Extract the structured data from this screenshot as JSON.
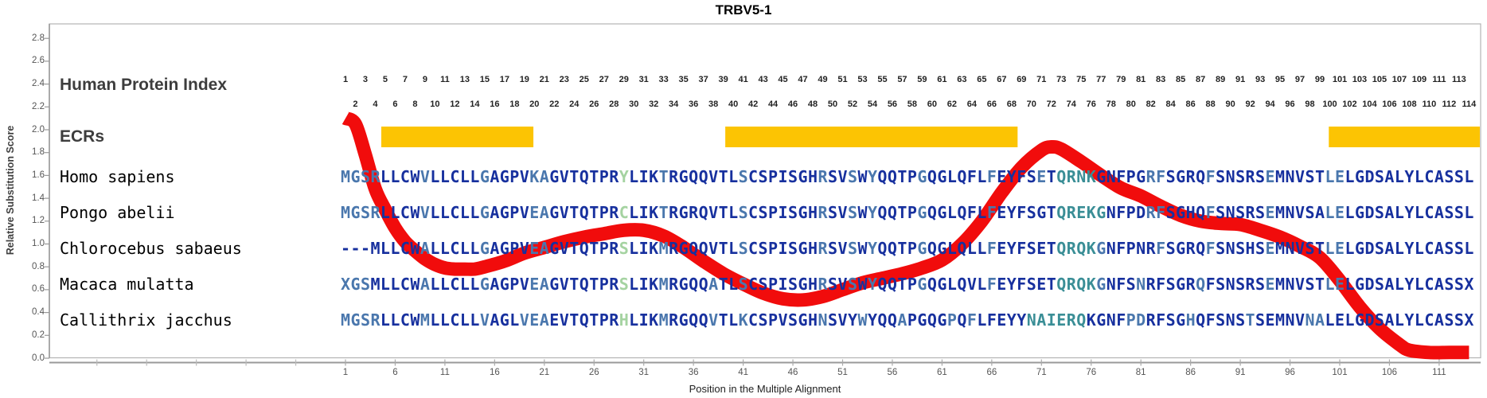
{
  "title": "TRBV5-1",
  "labels": {
    "human_protein_index": "Human Protein Index",
    "ecrs": "ECRs"
  },
  "y_axis": {
    "label": "Relative Substitution Score",
    "ticks": [
      "2.8",
      "2.6",
      "2.4",
      "2.2",
      "2.0",
      "1.8",
      "1.6",
      "1.4",
      "1.2",
      "1.0",
      "0.8",
      "0.6",
      "0.4",
      "0.2",
      "0.0"
    ]
  },
  "x_axis": {
    "label": "Position in the Multiple Alignment",
    "ticks": [
      1,
      6,
      11,
      16,
      21,
      26,
      31,
      36,
      41,
      46,
      51,
      56,
      61,
      66,
      71,
      76,
      81,
      86,
      91,
      96,
      101,
      106,
      111
    ]
  },
  "human_protein_index": {
    "odd_row": [
      1,
      3,
      5,
      7,
      9,
      11,
      13,
      15,
      17,
      19,
      21,
      23,
      25,
      27,
      29,
      31,
      33,
      35,
      37,
      39,
      41,
      43,
      45,
      47,
      49,
      51,
      53,
      55,
      57,
      59,
      61,
      63,
      65,
      67,
      69,
      71,
      73,
      75,
      77,
      79,
      81,
      83,
      85,
      87,
      89,
      91,
      93,
      95,
      97,
      99,
      101,
      103,
      105,
      107,
      109,
      111,
      113
    ],
    "even_row": [
      2,
      4,
      6,
      8,
      10,
      12,
      14,
      16,
      18,
      20,
      22,
      24,
      26,
      28,
      30,
      32,
      34,
      36,
      38,
      40,
      42,
      44,
      46,
      48,
      50,
      52,
      54,
      56,
      58,
      60,
      62,
      64,
      66,
      68,
      70,
      72,
      74,
      76,
      78,
      80,
      82,
      84,
      86,
      88,
      90,
      92,
      94,
      96,
      98,
      100,
      102,
      104,
      106,
      108,
      110,
      112,
      114
    ]
  },
  "ecr_bars": [
    {
      "start_col": 4.6,
      "end_col": 19.9
    },
    {
      "start_col": 39.2,
      "end_col": 68.6
    },
    {
      "start_col": 99.9,
      "end_col": 115.2
    }
  ],
  "alignment": {
    "rows": [
      {
        "species": "Homo sapiens",
        "seq": "MGSRLLCWVLLCLLGAGPVKAGVTQTPRYLIKTRGQQVTLSCSPISGHRSVSWYQQTPGQGLQFLFEYFSETQRNKGNFPGRFSGRQFSNSRSEMNVSTLELGDSALYLCASSL",
        "colors": "111100001000001000011000000030001000000010000000100101000010000001000010222200000110000100000100000110000000000000"
      },
      {
        "species": "Pongo abelii",
        "seq": "MGSRLLCWVLLCLLGAGPVEAGVTQTPRCLIKTRGRQVTLSCSPISGHRSVSWYQQTPGQGLQFLFEYFSGTQREKGNFPDRFSGHQFSNSRSEMNVSALELGDSALYLCASSL",
        "colors": "111100001000001000011000000030001000000010000000100101000010000001000000222220000110000100000100000110000000000000"
      },
      {
        "species": "Chlorocebus sabaeus",
        "seq": "---MLLCWALLCLLGAGPVEAGVTQTPRSLIKMRGQQVTLSCSPISGHRSVSWYQQTPGQGLQLLFEYFSETQRQKGNFPNRFSGRQFSNSHSEMNVSTLELGDSALYLCASSL",
        "colors": "000000001000001000011000000030001000000010000000100101000010000001000000222210000010000100000100000110000000000000"
      },
      {
        "species": "Macaca mulatta",
        "seq": "XGSMLLCWALLCLLGAGPVEAGVTQTPRSLIKMRGQQATLSCSPISGHRSVSWYQQTPGQGLQVLFEYFSETQRQKGNFSNRFSGRQFSNSRSEMNVSTLELGDSALYLCASSX",
        "colors": "111000001000001000011000000030001000010010000000100101000010000001000000222210001000001000000100000110000000000000"
      },
      {
        "species": "Callithrix jacchus",
        "seq": "MGSRLLCWMLLCLLVAGLVEAEVTQTPRHLIKMRGQQVTLKCSPVSGHNSVYWYQQAPGQGPQFLFEYYNAIERQKGNFPDRFSGHQFSNSTSEMNVNALELGDSALYLCASSX",
        "colors": "111100001000001000111000000030001000010010000000100010001000010100000222222000011000010000010000011000000000000000"
      }
    ]
  },
  "chart_data": {
    "type": "line",
    "title": "TRBV5-1",
    "xlabel": "Position in the Multiple Alignment",
    "ylabel": "Relative Substitution Score",
    "xlim": [
      -30,
      115.5
    ],
    "ylim": [
      0,
      2.93
    ],
    "grid": false,
    "legend": "none",
    "series_name": "relative substitution score",
    "x": [
      1,
      2,
      3,
      4,
      5,
      6,
      7,
      8,
      9,
      10,
      11,
      12,
      13,
      14,
      15,
      17,
      19,
      21,
      23,
      25,
      27,
      29,
      31,
      33,
      35,
      37,
      39,
      41,
      43,
      45,
      47,
      49,
      51,
      53,
      55,
      57,
      59,
      61,
      63,
      65,
      67,
      69,
      71,
      72,
      73,
      75,
      77,
      79,
      81,
      83,
      85,
      87,
      89,
      91,
      93,
      95,
      97,
      99,
      101,
      103,
      105,
      107,
      108,
      110,
      112,
      114
    ],
    "y": [
      2.1,
      2.05,
      1.78,
      1.48,
      1.3,
      1.14,
      1.02,
      0.94,
      0.87,
      0.82,
      0.79,
      0.78,
      0.78,
      0.78,
      0.8,
      0.85,
      0.92,
      0.97,
      1.02,
      1.06,
      1.09,
      1.12,
      1.12,
      1.07,
      0.97,
      0.85,
      0.74,
      0.65,
      0.57,
      0.52,
      0.51,
      0.54,
      0.6,
      0.66,
      0.7,
      0.74,
      0.79,
      0.86,
      1.0,
      1.2,
      1.45,
      1.67,
      1.82,
      1.85,
      1.83,
      1.72,
      1.6,
      1.49,
      1.42,
      1.33,
      1.25,
      1.2,
      1.18,
      1.17,
      1.12,
      1.06,
      0.98,
      0.88,
      0.68,
      0.45,
      0.26,
      0.12,
      0.07,
      0.05,
      0.05,
      0.05
    ]
  },
  "colors": {
    "curve_red": "#f10c0c",
    "ecr_yellow": "#fcc403",
    "navy": "#17309e",
    "steel_blue": "#4a77ad",
    "teal": "#3a8e96",
    "light_green": "#a5d3a1",
    "axis_gray": "#999999",
    "border_gray": "#b3b3b3"
  }
}
